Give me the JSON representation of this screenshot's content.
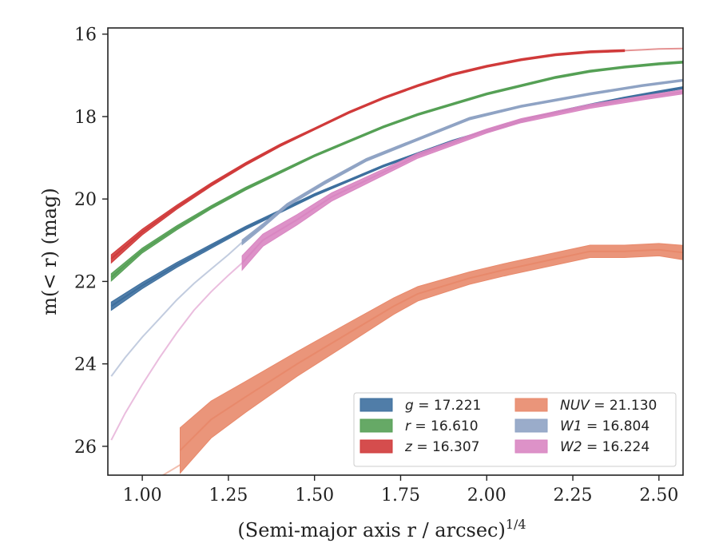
{
  "chart_data": {
    "type": "area",
    "xlabel": "(Semi-major axis r / arcsec)",
    "xlabel_exponent": "1/4",
    "ylabel": "m(< r) (mag)",
    "xlim": [
      0.9,
      2.57
    ],
    "ylim": [
      26.7,
      15.85
    ],
    "y_inverted": true,
    "grid": false,
    "legend_position": "lower-right",
    "x_ticks": [
      1.0,
      1.25,
      1.5,
      1.75,
      2.0,
      2.25,
      2.5
    ],
    "x_tick_labels": [
      "1.00",
      "1.25",
      "1.50",
      "1.75",
      "2.00",
      "2.25",
      "2.50"
    ],
    "y_ticks": [
      16,
      18,
      20,
      22,
      24,
      26
    ],
    "y_tick_labels": [
      "16",
      "18",
      "20",
      "22",
      "24",
      "26"
    ],
    "series": [
      {
        "key": "g",
        "label_var": "g",
        "label_val": "17.221",
        "italic": false,
        "color": "#3d6f9e",
        "faint_x": [],
        "faint_y": [],
        "x": [
          0.91,
          1.0,
          1.1,
          1.2,
          1.3,
          1.4,
          1.5,
          1.6,
          1.7,
          1.8,
          1.9,
          2.0,
          2.1,
          2.2,
          2.3,
          2.4,
          2.5,
          2.57
        ],
        "y": [
          22.6,
          22.1,
          21.6,
          21.15,
          20.7,
          20.3,
          19.9,
          19.55,
          19.2,
          18.9,
          18.6,
          18.35,
          18.1,
          17.9,
          17.72,
          17.55,
          17.4,
          17.3
        ],
        "w": [
          0.2,
          0.15,
          0.12,
          0.1,
          0.08,
          0.07,
          0.06,
          0.05,
          0.05,
          0.05,
          0.05,
          0.05,
          0.05,
          0.05,
          0.05,
          0.05,
          0.05,
          0.05
        ]
      },
      {
        "key": "r",
        "label_var": "r",
        "label_val": "16.610",
        "italic": false,
        "color": "#55a055",
        "faint_x": [],
        "faint_y": [],
        "x": [
          0.91,
          1.0,
          1.1,
          1.2,
          1.3,
          1.4,
          1.5,
          1.6,
          1.7,
          1.8,
          1.9,
          2.0,
          2.1,
          2.2,
          2.3,
          2.4,
          2.5,
          2.57
        ],
        "y": [
          21.9,
          21.25,
          20.7,
          20.2,
          19.75,
          19.35,
          18.95,
          18.6,
          18.25,
          17.95,
          17.7,
          17.45,
          17.25,
          17.05,
          16.9,
          16.8,
          16.72,
          16.68
        ],
        "w": [
          0.18,
          0.12,
          0.1,
          0.08,
          0.07,
          0.06,
          0.05,
          0.05,
          0.05,
          0.05,
          0.05,
          0.05,
          0.05,
          0.05,
          0.05,
          0.05,
          0.05,
          0.05
        ]
      },
      {
        "key": "z",
        "label_var": "z",
        "label_val": "16.307",
        "italic": false,
        "color": "#d03a3a",
        "faint_x": [
          2.4,
          2.45,
          2.5,
          2.57
        ],
        "faint_y": [
          16.4,
          16.38,
          16.36,
          16.35
        ],
        "x": [
          0.91,
          1.0,
          1.1,
          1.2,
          1.3,
          1.4,
          1.5,
          1.6,
          1.7,
          1.8,
          1.9,
          2.0,
          2.1,
          2.2,
          2.3,
          2.4
        ],
        "y": [
          21.45,
          20.8,
          20.2,
          19.65,
          19.15,
          18.7,
          18.3,
          17.9,
          17.55,
          17.25,
          16.98,
          16.78,
          16.62,
          16.5,
          16.43,
          16.4
        ],
        "w": [
          0.2,
          0.14,
          0.1,
          0.08,
          0.07,
          0.06,
          0.05,
          0.05,
          0.05,
          0.05,
          0.05,
          0.05,
          0.05,
          0.05,
          0.05,
          0.05
        ]
      },
      {
        "key": "nuv",
        "label_var": "NUV",
        "label_val": "21.130",
        "italic": true,
        "color": "#e8896b",
        "faint_x": [
          1.03,
          1.06,
          1.09,
          1.11
        ],
        "faint_y": [
          26.85,
          26.7,
          26.55,
          26.45
        ],
        "x": [
          1.11,
          1.2,
          1.3,
          1.45,
          1.6,
          1.73,
          1.8,
          1.95,
          2.05,
          2.2,
          2.3,
          2.4,
          2.5,
          2.57
        ],
        "y": [
          26.1,
          25.35,
          24.8,
          24.0,
          23.25,
          22.6,
          22.3,
          21.92,
          21.72,
          21.45,
          21.27,
          21.27,
          21.23,
          21.3
        ],
        "w": [
          1.1,
          0.9,
          0.75,
          0.6,
          0.5,
          0.4,
          0.35,
          0.3,
          0.3,
          0.3,
          0.3,
          0.3,
          0.3,
          0.35
        ]
      },
      {
        "key": "w1",
        "label_var": "W1",
        "label_val": "16.804",
        "italic": true,
        "color": "#8fa3c4",
        "faint_x": [
          0.91,
          0.95,
          1.0,
          1.05,
          1.1,
          1.15,
          1.2,
          1.25,
          1.29
        ],
        "faint_y": [
          24.3,
          23.85,
          23.35,
          22.9,
          22.45,
          22.05,
          21.7,
          21.35,
          21.05
        ],
        "x": [
          1.29,
          1.35,
          1.42,
          1.53,
          1.65,
          1.8,
          1.95,
          2.1,
          2.3,
          2.45,
          2.57
        ],
        "y": [
          21.05,
          20.65,
          20.15,
          19.6,
          19.05,
          18.55,
          18.05,
          17.75,
          17.45,
          17.25,
          17.12
        ],
        "w": [
          0.12,
          0.1,
          0.08,
          0.08,
          0.07,
          0.06,
          0.06,
          0.05,
          0.05,
          0.05,
          0.05
        ]
      },
      {
        "key": "w2",
        "label_var": "W2",
        "label_val": "16.224",
        "italic": true,
        "color": "#d986c2",
        "faint_x": [
          0.91,
          0.95,
          1.0,
          1.05,
          1.1,
          1.15,
          1.2,
          1.25,
          1.29
        ],
        "faint_y": [
          25.85,
          25.2,
          24.5,
          23.85,
          23.25,
          22.7,
          22.25,
          21.85,
          21.55
        ],
        "x": [
          1.29,
          1.35,
          1.45,
          1.55,
          1.7,
          1.8,
          2.0,
          2.1,
          2.3,
          2.45,
          2.57
        ],
        "y": [
          21.55,
          21.0,
          20.5,
          19.95,
          19.35,
          18.95,
          18.35,
          18.1,
          17.75,
          17.55,
          17.4
        ],
        "w": [
          0.35,
          0.3,
          0.25,
          0.2,
          0.15,
          0.12,
          0.1,
          0.1,
          0.1,
          0.1,
          0.1
        ]
      }
    ],
    "legend_order": [
      "g",
      "r",
      "z",
      "nuv",
      "w1",
      "w2"
    ]
  }
}
